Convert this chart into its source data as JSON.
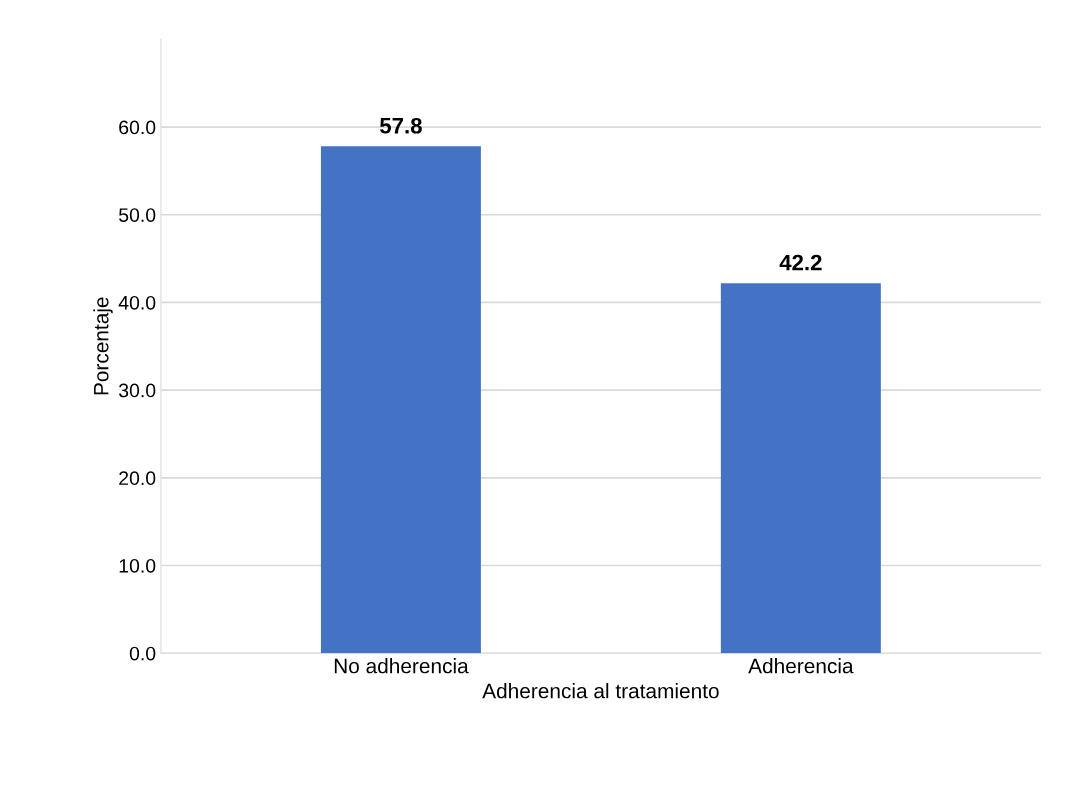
{
  "chart_data": {
    "type": "bar",
    "xlabel": "Adherencia al tratamiento",
    "ylabel": "Porcentaje",
    "categories": [
      "No adherencia",
      "Adherencia"
    ],
    "values": [
      57.8,
      42.2
    ],
    "color": "#4472c4",
    "ylim": [
      0,
      70
    ],
    "yticks": [
      {
        "value": 0,
        "label": "0.0"
      },
      {
        "value": 10,
        "label": "10.0"
      },
      {
        "value": 20,
        "label": "20.0"
      },
      {
        "value": 30,
        "label": "30.0"
      },
      {
        "value": 40,
        "label": "40.0"
      },
      {
        "value": 50,
        "label": "50.0"
      },
      {
        "value": 60,
        "label": "60.0"
      }
    ],
    "grid": "y",
    "data_labels": true
  }
}
